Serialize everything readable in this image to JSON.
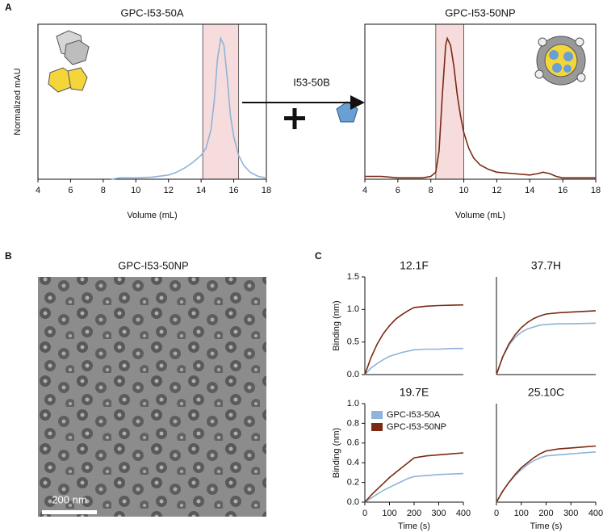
{
  "panel_labels": [
    "A",
    "B",
    "C"
  ],
  "reagent": "I53-50B",
  "micrograph": {
    "title": "GPC-I53-50NP",
    "scale_bar": "200 nm"
  },
  "chart_data": [
    {
      "type": "line",
      "title": "GPC-I53-50A",
      "xlabel": "Volume (mL)",
      "ylabel": "Normalized mAU",
      "color": "#8fb3d9",
      "x": [
        8.5,
        9,
        10,
        11,
        12,
        12.5,
        13,
        13.5,
        14,
        14.3,
        14.6,
        14.8,
        15,
        15.2,
        15.4,
        15.6,
        15.8,
        16,
        16.3,
        16.6,
        17,
        17.5,
        18
      ],
      "values": [
        0,
        0.01,
        0.01,
        0.015,
        0.03,
        0.05,
        0.08,
        0.12,
        0.17,
        0.22,
        0.35,
        0.55,
        0.85,
        1.0,
        0.95,
        0.72,
        0.45,
        0.3,
        0.17,
        0.1,
        0.05,
        0.02,
        0.01
      ],
      "xlim": [
        4,
        18
      ],
      "xticks": [
        4,
        6,
        8,
        10,
        12,
        14,
        16,
        18
      ],
      "ylim": [
        0,
        1.1
      ],
      "highlight": [
        14.1,
        16.3
      ]
    },
    {
      "type": "line",
      "title": "GPC-I53-50NP",
      "xlabel": "Volume (mL)",
      "color": "#7a2a12",
      "x": [
        4,
        5,
        6,
        7,
        7.5,
        8,
        8.3,
        8.5,
        8.7,
        8.9,
        9.0,
        9.2,
        9.4,
        9.6,
        9.8,
        10,
        10.3,
        10.6,
        11,
        11.5,
        12,
        13,
        14,
        14.5,
        14.8,
        15.2,
        15.6,
        16,
        17,
        18
      ],
      "values": [
        0.02,
        0.02,
        0.01,
        0.01,
        0.01,
        0.02,
        0.05,
        0.2,
        0.6,
        0.95,
        1.0,
        0.95,
        0.8,
        0.6,
        0.45,
        0.33,
        0.22,
        0.15,
        0.1,
        0.07,
        0.05,
        0.04,
        0.03,
        0.04,
        0.05,
        0.04,
        0.02,
        0.01,
        0.01,
        0.01
      ],
      "xlim": [
        4,
        18
      ],
      "xticks": [
        4,
        6,
        8,
        10,
        12,
        14,
        16,
        18
      ],
      "ylim": [
        0,
        1.1
      ],
      "highlight": [
        8.3,
        10
      ]
    },
    {
      "type": "line",
      "title": "12.1F",
      "ylabel": "Binding (nm)",
      "x": [
        0,
        25,
        50,
        75,
        100,
        125,
        150,
        175,
        200,
        250,
        300,
        350,
        400
      ],
      "xlim": [
        0,
        400
      ],
      "ylim": [
        0,
        1.5
      ],
      "yticks": [
        {
          "value": 0,
          "label": "0.0"
        },
        0.5,
        {
          "value": 1,
          "label": "1.0"
        },
        1.5
      ],
      "series": [
        {
          "color": "#8fb3d9",
          "values": [
            0,
            0.1,
            0.17,
            0.23,
            0.28,
            0.31,
            0.34,
            0.36,
            0.38,
            0.39,
            0.39,
            0.4,
            0.4
          ]
        },
        {
          "color": "#7a2a12",
          "values": [
            0,
            0.26,
            0.47,
            0.63,
            0.75,
            0.85,
            0.92,
            0.98,
            1.03,
            1.05,
            1.06,
            1.065,
            1.07
          ]
        }
      ]
    },
    {
      "type": "line",
      "title": "37.7H",
      "x": [
        0,
        25,
        50,
        75,
        100,
        125,
        150,
        175,
        200,
        250,
        300,
        350,
        400
      ],
      "xlim": [
        0,
        400
      ],
      "ylim": [
        0,
        1.5
      ],
      "series": [
        {
          "color": "#8fb3d9",
          "values": [
            0,
            0.27,
            0.45,
            0.57,
            0.65,
            0.7,
            0.73,
            0.76,
            0.77,
            0.78,
            0.78,
            0.785,
            0.79
          ]
        },
        {
          "color": "#7a2a12",
          "values": [
            0,
            0.27,
            0.47,
            0.61,
            0.72,
            0.8,
            0.86,
            0.9,
            0.93,
            0.95,
            0.96,
            0.97,
            0.98
          ]
        }
      ]
    },
    {
      "type": "line",
      "title": "19.7E",
      "ylabel": "Binding (nm)",
      "xlabel": "Time (s)",
      "legend": "upper left",
      "x": [
        0,
        25,
        50,
        75,
        100,
        125,
        150,
        175,
        200,
        250,
        300,
        350,
        400
      ],
      "xlim": [
        0,
        400
      ],
      "xticks": [
        0,
        100,
        200,
        300,
        400
      ],
      "ylim": [
        0,
        1
      ],
      "yticks": [
        {
          "value": 0,
          "label": "0.0"
        },
        0.2,
        0.4,
        0.6,
        0.8,
        {
          "value": 1,
          "label": "1.0"
        }
      ],
      "series": [
        {
          "name": "GPC-I53-50A",
          "color": "#8fb3d9",
          "values": [
            0,
            0.04,
            0.08,
            0.12,
            0.15,
            0.18,
            0.21,
            0.24,
            0.26,
            0.27,
            0.28,
            0.285,
            0.29
          ]
        },
        {
          "name": "GPC-I53-50NP",
          "color": "#7a2a12",
          "values": [
            0,
            0.07,
            0.13,
            0.19,
            0.25,
            0.3,
            0.35,
            0.4,
            0.45,
            0.47,
            0.48,
            0.49,
            0.5
          ]
        }
      ]
    },
    {
      "type": "line",
      "title": "25.10C",
      "xlabel": "Time (s)",
      "x": [
        0,
        25,
        50,
        75,
        100,
        125,
        150,
        175,
        200,
        250,
        300,
        350,
        400
      ],
      "xlim": [
        0,
        400
      ],
      "xticks": [
        0,
        100,
        200,
        300,
        400
      ],
      "ylim": [
        0,
        1
      ],
      "series": [
        {
          "color": "#8fb3d9",
          "values": [
            0,
            0.11,
            0.2,
            0.27,
            0.33,
            0.38,
            0.42,
            0.45,
            0.47,
            0.48,
            0.49,
            0.5,
            0.51
          ]
        },
        {
          "color": "#7a2a12",
          "values": [
            0,
            0.11,
            0.2,
            0.28,
            0.35,
            0.4,
            0.45,
            0.49,
            0.52,
            0.54,
            0.55,
            0.56,
            0.57
          ]
        }
      ]
    }
  ]
}
